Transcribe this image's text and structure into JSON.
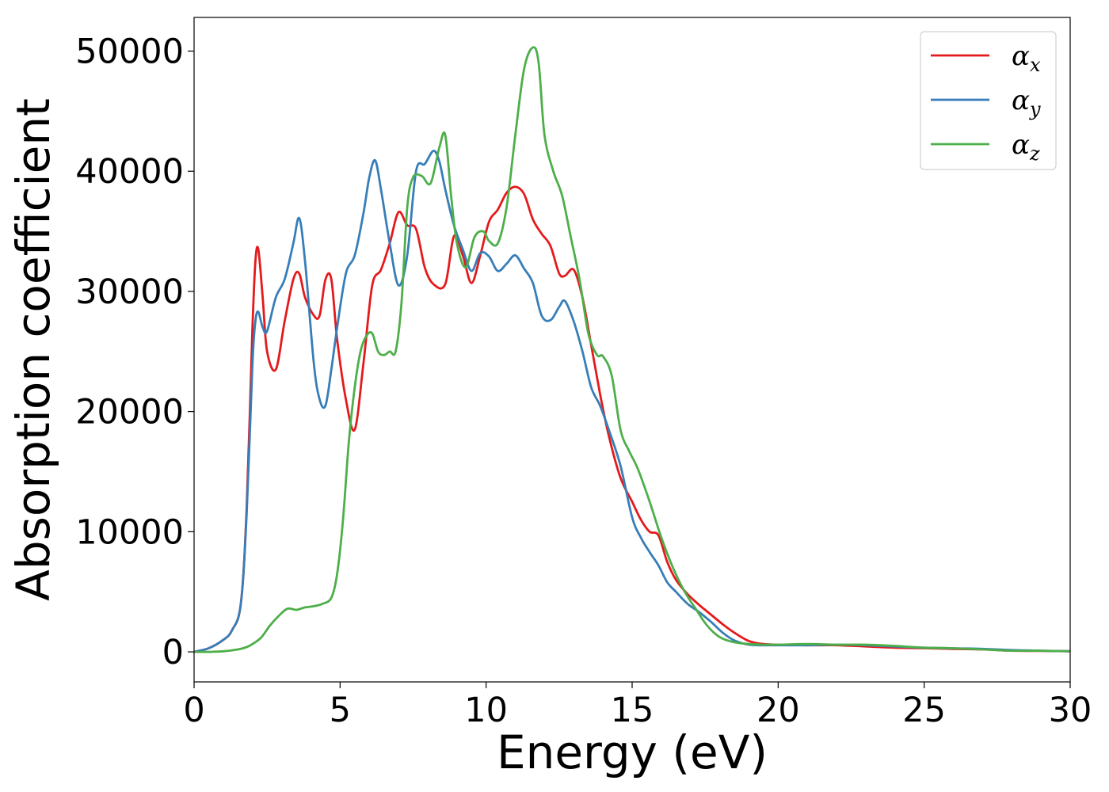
{
  "chart_data": {
    "type": "line",
    "xlabel": "Energy (eV)",
    "ylabel": "Absorption coefficient",
    "xlim": [
      0,
      30
    ],
    "ylim": [
      -2500,
      52800
    ],
    "xticks": [
      0,
      5,
      10,
      15,
      20,
      25,
      30
    ],
    "xtick_labels": [
      "0",
      "5",
      "10",
      "15",
      "20",
      "25",
      "30"
    ],
    "yticks": [
      0,
      10000,
      20000,
      30000,
      40000,
      50000
    ],
    "ytick_labels": [
      "0",
      "10000",
      "20000",
      "30000",
      "40000",
      "50000"
    ],
    "grid": false,
    "legend_position": "top-right",
    "series": [
      {
        "name": "α",
        "subscript": "x",
        "color": "#e41a1c",
        "x": [
          0,
          0.5,
          1.0,
          1.3,
          1.6,
          1.8,
          2.0,
          2.1,
          2.2,
          2.35,
          2.5,
          2.8,
          3.1,
          3.4,
          3.6,
          3.8,
          4.1,
          4.3,
          4.5,
          4.7,
          4.9,
          5.2,
          5.5,
          5.8,
          6.1,
          6.4,
          6.7,
          7.0,
          7.3,
          7.6,
          7.9,
          8.2,
          8.6,
          8.9,
          9.2,
          9.5,
          9.8,
          10.1,
          10.4,
          10.7,
          11.0,
          11.3,
          11.6,
          11.9,
          12.2,
          12.5,
          12.7,
          13.0,
          13.3,
          13.6,
          13.9,
          14.2,
          14.6,
          15.0,
          15.3,
          15.6,
          15.9,
          16.2,
          16.5,
          16.9,
          17.3,
          17.7,
          18.1,
          18.5,
          19.0,
          19.5,
          20.0,
          21.0,
          22.0,
          23.0,
          24.0,
          25.0,
          26.0,
          27.0,
          28.0,
          29.0,
          30.0
        ],
        "y": [
          0,
          300,
          1000,
          1800,
          4000,
          12000,
          27000,
          32500,
          33500,
          29500,
          25000,
          23500,
          27500,
          31000,
          31500,
          29500,
          28000,
          28000,
          31000,
          31000,
          26000,
          21000,
          18500,
          24000,
          30500,
          31800,
          34000,
          36600,
          35500,
          35200,
          32000,
          30600,
          30600,
          34600,
          33000,
          30700,
          33000,
          35800,
          36800,
          38200,
          38700,
          38100,
          36000,
          34800,
          33800,
          31500,
          31300,
          31800,
          29500,
          25500,
          21500,
          18000,
          14500,
          12500,
          11000,
          10000,
          9700,
          7500,
          6000,
          4800,
          3900,
          3100,
          2300,
          1600,
          900,
          650,
          600,
          550,
          550,
          450,
          350,
          300,
          250,
          200,
          100,
          80,
          50
        ]
      },
      {
        "name": "α",
        "subscript": "y",
        "color": "#377eb8",
        "x": [
          0,
          0.5,
          1.0,
          1.3,
          1.6,
          1.8,
          2.0,
          2.1,
          2.2,
          2.35,
          2.5,
          2.8,
          3.1,
          3.4,
          3.6,
          3.8,
          4.1,
          4.3,
          4.5,
          4.7,
          4.9,
          5.2,
          5.5,
          5.8,
          6.0,
          6.2,
          6.4,
          6.7,
          7.0,
          7.3,
          7.6,
          7.9,
          8.2,
          8.4,
          8.6,
          8.9,
          9.2,
          9.5,
          9.8,
          10.1,
          10.4,
          10.7,
          11.0,
          11.3,
          11.6,
          11.9,
          12.2,
          12.5,
          12.7,
          13.0,
          13.3,
          13.6,
          13.9,
          14.2,
          14.6,
          15.0,
          15.3,
          15.6,
          15.9,
          16.2,
          16.5,
          16.9,
          17.3,
          17.7,
          18.1,
          18.5,
          19.0,
          19.5,
          20.0,
          21.0,
          22.0,
          23.0,
          24.0,
          25.0,
          26.0,
          27.0,
          28.0,
          29.0,
          30.0
        ],
        "y": [
          0,
          300,
          1000,
          1800,
          4000,
          11500,
          24000,
          27500,
          28300,
          27000,
          26700,
          29500,
          31000,
          34000,
          36100,
          32500,
          24000,
          21000,
          20500,
          23500,
          27000,
          31500,
          33000,
          36500,
          39500,
          40900,
          38500,
          34000,
          30500,
          33000,
          40000,
          40600,
          41700,
          40800,
          38500,
          35500,
          33500,
          31700,
          33200,
          32900,
          31700,
          32300,
          33000,
          31900,
          30700,
          28000,
          27600,
          28700,
          29200,
          27500,
          25000,
          22000,
          20500,
          18500,
          15500,
          11200,
          9500,
          8300,
          7200,
          5800,
          5000,
          4000,
          3300,
          2500,
          1600,
          950,
          600,
          550,
          550,
          550,
          600,
          550,
          450,
          350,
          300,
          250,
          150,
          100,
          50
        ]
      },
      {
        "name": "α",
        "subscript": "z",
        "color": "#4daf4a",
        "x": [
          0,
          0.5,
          1.0,
          1.5,
          1.8,
          2.0,
          2.3,
          2.6,
          2.9,
          3.2,
          3.5,
          3.8,
          4.1,
          4.4,
          4.7,
          4.9,
          5.1,
          5.3,
          5.5,
          5.7,
          5.9,
          6.1,
          6.3,
          6.5,
          6.7,
          6.9,
          7.1,
          7.3,
          7.5,
          7.8,
          8.1,
          8.4,
          8.6,
          8.8,
          9.0,
          9.3,
          9.6,
          9.9,
          10.1,
          10.4,
          10.7,
          11.0,
          11.3,
          11.6,
          11.8,
          12.0,
          12.3,
          12.6,
          12.9,
          13.2,
          13.5,
          13.8,
          14.0,
          14.3,
          14.6,
          14.9,
          15.2,
          15.6,
          16.0,
          16.4,
          16.8,
          17.2,
          17.5,
          17.8,
          18.1,
          18.5,
          19.0,
          19.5,
          20.0,
          21.0,
          22.0,
          23.0,
          23.5,
          24.0,
          25.0,
          26.0,
          27.0,
          28.0,
          29.0,
          30.0
        ],
        "y": [
          0,
          0,
          50,
          200,
          400,
          650,
          1200,
          2200,
          3000,
          3600,
          3500,
          3700,
          3800,
          4000,
          4500,
          6500,
          11000,
          17500,
          22000,
          25000,
          26300,
          26500,
          25000,
          24700,
          25000,
          25000,
          29000,
          37000,
          39500,
          39600,
          39000,
          42000,
          43000,
          38000,
          34000,
          32000,
          34500,
          35000,
          34200,
          34000,
          37000,
          43000,
          48500,
          50300,
          49000,
          43000,
          40000,
          38000,
          34500,
          31000,
          26500,
          24700,
          24600,
          23000,
          18500,
          16700,
          15200,
          12500,
          9500,
          7000,
          5000,
          3500,
          2400,
          1600,
          1100,
          800,
          650,
          600,
          600,
          650,
          600,
          600,
          550,
          500,
          350,
          300,
          200,
          100,
          100,
          50
        ]
      }
    ]
  }
}
